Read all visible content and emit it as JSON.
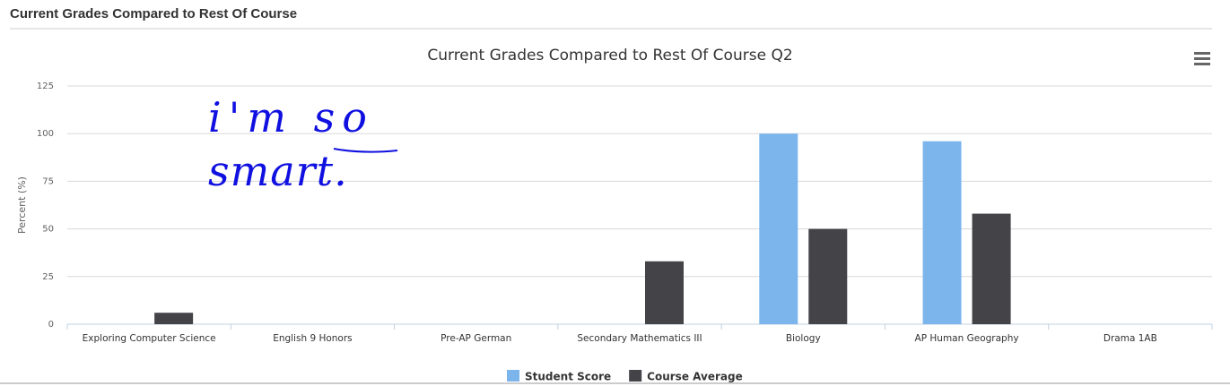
{
  "header": {
    "title": "Current Grades Compared to Rest Of Course"
  },
  "chart_data": {
    "type": "bar",
    "title": "Current Grades Compared to Rest Of Course Q2",
    "y_label": "Percent (%)",
    "categories": [
      "Exploring Computer Science",
      "English 9 Honors",
      "Pre-AP German",
      "Secondary Mathematics III",
      "Biology",
      "AP Human Geography",
      "Drama 1AB"
    ],
    "series": [
      {
        "name": "Student Score",
        "color": "#7cb5ec",
        "values": [
          null,
          null,
          null,
          null,
          100,
          96,
          null
        ]
      },
      {
        "name": "Course Average",
        "color": "#434348",
        "values": [
          6,
          null,
          null,
          33,
          50,
          58,
          null
        ]
      }
    ],
    "ylim": [
      0,
      125
    ],
    "yticks": [
      0,
      25,
      50,
      75,
      100,
      125
    ],
    "grid": true,
    "annotations": [
      "i'm so",
      "smart."
    ]
  }
}
